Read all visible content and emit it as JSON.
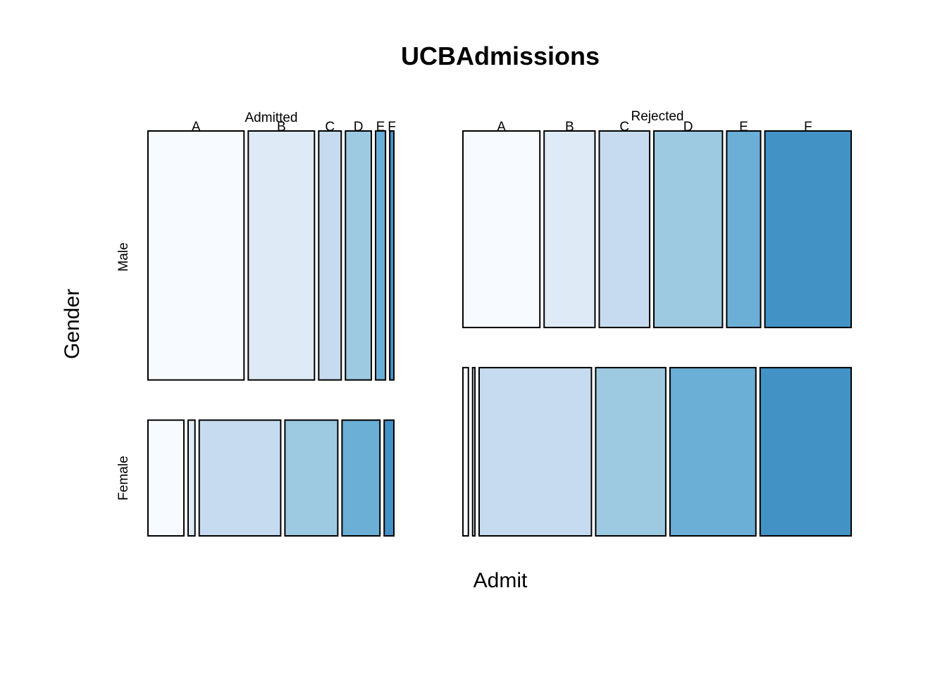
{
  "chart_data": {
    "type": "mosaic",
    "title": "UCBAdmissions",
    "xlabel": "Admit",
    "ylabel": "Gender",
    "admit_levels": [
      "Admitted",
      "Rejected"
    ],
    "gender_levels": [
      "Male",
      "Female"
    ],
    "dept_levels": [
      "A",
      "B",
      "C",
      "D",
      "E",
      "F"
    ],
    "colors": [
      "#F7FBFF",
      "#DEEBF7",
      "#C6DBEF",
      "#9ECAE1",
      "#6BAED6",
      "#4292C6"
    ],
    "counts": {
      "Admitted": {
        "Male": {
          "A": 512,
          "B": 353,
          "C": 120,
          "D": 138,
          "E": 53,
          "F": 22
        },
        "Female": {
          "A": 89,
          "B": 17,
          "C": 202,
          "D": 131,
          "E": 94,
          "F": 24
        }
      },
      "Rejected": {
        "Male": {
          "A": 313,
          "B": 207,
          "C": 205,
          "D": 279,
          "E": 138,
          "F": 351
        },
        "Female": {
          "A": 19,
          "B": 8,
          "C": 391,
          "D": 244,
          "E": 299,
          "F": 317
        }
      }
    }
  }
}
